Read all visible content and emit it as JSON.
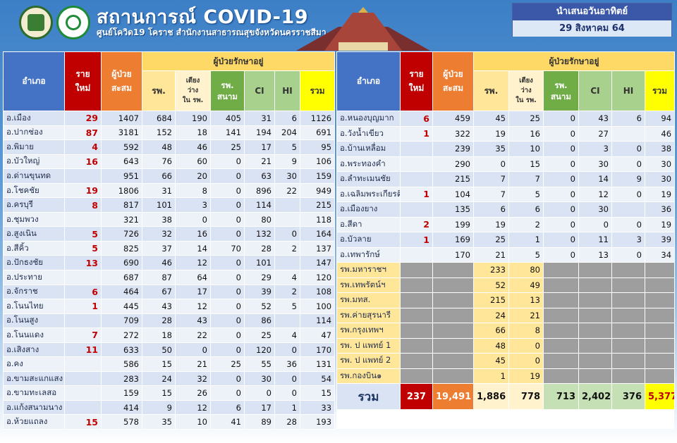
{
  "header": {
    "title": "สถานการณ์ COVID-19",
    "subtitle": "ศูนย์โควิด19 โคราช สำนักงานสาธารณสุขจังหวัดนครราชสีมา",
    "date_label": "นำเสนอวันอาทิตย์",
    "date_value": "29 สิงหาคม 64"
  },
  "columns": {
    "district": "อำเภอ",
    "new_line1": "ราย",
    "new_line2": "ใหม่",
    "cum_line1": "ผู้ป่วย",
    "cum_line2": "สะสม",
    "group": "ผู้ป่วยรักษาอยู่",
    "hosp": "รพ.",
    "bed_line1": "เตียง",
    "bed_line2": "ว่าง",
    "bed_line3": "ใน รพ.",
    "field_line1": "รพ.",
    "field_line2": "สนาม",
    "ci": "CI",
    "hi": "HI",
    "total": "รวม"
  },
  "left_rows": [
    {
      "name": "อ.เมือง",
      "new": "29",
      "cum": "1407",
      "hosp": "684",
      "bed": "190",
      "field": "405",
      "ci": "31",
      "hi": "6",
      "total": "1126"
    },
    {
      "name": "อ.ปากช่อง",
      "new": "87",
      "cum": "3181",
      "hosp": "152",
      "bed": "18",
      "field": "141",
      "ci": "194",
      "hi": "204",
      "total": "691"
    },
    {
      "name": "อ.พิมาย",
      "new": "4",
      "cum": "592",
      "hosp": "48",
      "bed": "46",
      "field": "25",
      "ci": "17",
      "hi": "5",
      "total": "95"
    },
    {
      "name": "อ.บัวใหญ่",
      "new": "16",
      "cum": "643",
      "hosp": "76",
      "bed": "60",
      "field": "0",
      "ci": "21",
      "hi": "9",
      "total": "106"
    },
    {
      "name": "อ.ด่านขุนทด",
      "new": "",
      "cum": "951",
      "hosp": "66",
      "bed": "20",
      "field": "0",
      "ci": "63",
      "hi": "30",
      "total": "159"
    },
    {
      "name": "อ.โชคชัย",
      "new": "19",
      "cum": "1806",
      "hosp": "31",
      "bed": "8",
      "field": "0",
      "ci": "896",
      "hi": "22",
      "total": "949"
    },
    {
      "name": "อ.ครบุรี",
      "new": "8",
      "cum": "817",
      "hosp": "101",
      "bed": "3",
      "field": "0",
      "ci": "114",
      "hi": "",
      "total": "215"
    },
    {
      "name": "อ.ชุมพวง",
      "new": "",
      "cum": "321",
      "hosp": "38",
      "bed": "0",
      "field": "0",
      "ci": "80",
      "hi": "",
      "total": "118"
    },
    {
      "name": "อ.สูงเนิน",
      "new": "5",
      "cum": "726",
      "hosp": "32",
      "bed": "16",
      "field": "0",
      "ci": "132",
      "hi": "0",
      "total": "164"
    },
    {
      "name": "อ.สีคิ้ว",
      "new": "5",
      "cum": "825",
      "hosp": "37",
      "bed": "14",
      "field": "70",
      "ci": "28",
      "hi": "2",
      "total": "137"
    },
    {
      "name": "อ.ปักธงชัย",
      "new": "13",
      "cum": "690",
      "hosp": "46",
      "bed": "12",
      "field": "0",
      "ci": "101",
      "hi": "",
      "total": "147"
    },
    {
      "name": "อ.ประทาย",
      "new": "",
      "cum": "687",
      "hosp": "87",
      "bed": "64",
      "field": "0",
      "ci": "29",
      "hi": "4",
      "total": "120"
    },
    {
      "name": "อ.จักราช",
      "new": "6",
      "cum": "464",
      "hosp": "67",
      "bed": "17",
      "field": "0",
      "ci": "39",
      "hi": "2",
      "total": "108"
    },
    {
      "name": "อ.โนนไทย",
      "new": "1",
      "cum": "445",
      "hosp": "43",
      "bed": "12",
      "field": "0",
      "ci": "52",
      "hi": "5",
      "total": "100"
    },
    {
      "name": "อ.โนนสูง",
      "new": "",
      "cum": "709",
      "hosp": "28",
      "bed": "43",
      "field": "0",
      "ci": "86",
      "hi": "",
      "total": "114"
    },
    {
      "name": "อ.โนนแดง",
      "new": "7",
      "cum": "272",
      "hosp": "18",
      "bed": "22",
      "field": "0",
      "ci": "25",
      "hi": "4",
      "total": "47"
    },
    {
      "name": "อ.เสิงสาง",
      "new": "11",
      "cum": "633",
      "hosp": "50",
      "bed": "0",
      "field": "0",
      "ci": "120",
      "hi": "0",
      "total": "170"
    },
    {
      "name": "อ.คง",
      "new": "",
      "cum": "586",
      "hosp": "15",
      "bed": "21",
      "field": "25",
      "ci": "55",
      "hi": "36",
      "total": "131"
    },
    {
      "name": "อ.ขามสะแกแสง",
      "new": "",
      "cum": "283",
      "hosp": "24",
      "bed": "32",
      "field": "0",
      "ci": "30",
      "hi": "0",
      "total": "54"
    },
    {
      "name": "อ.ขามทะเลสอ",
      "new": "",
      "cum": "159",
      "hosp": "15",
      "bed": "26",
      "field": "0",
      "ci": "0",
      "hi": "0",
      "total": "15"
    },
    {
      "name": "อ.แก้งสนามนาง",
      "new": "",
      "cum": "414",
      "hosp": "9",
      "bed": "12",
      "field": "6",
      "ci": "17",
      "hi": "1",
      "total": "33"
    },
    {
      "name": "อ.ห้วยแถลง",
      "new": "15",
      "cum": "578",
      "hosp": "35",
      "bed": "10",
      "field": "41",
      "ci": "89",
      "hi": "28",
      "total": "193"
    }
  ],
  "right_rows": [
    {
      "name": "อ.หนองบุญมาก",
      "new": "6",
      "cum": "459",
      "hosp": "45",
      "bed": "25",
      "field": "0",
      "ci": "43",
      "hi": "6",
      "total": "94"
    },
    {
      "name": "อ.วังน้ำเขียว",
      "new": "1",
      "cum": "322",
      "hosp": "19",
      "bed": "16",
      "field": "0",
      "ci": "27",
      "hi": "",
      "total": "46"
    },
    {
      "name": "อ.บ้านเหลื่อม",
      "new": "",
      "cum": "239",
      "hosp": "35",
      "bed": "10",
      "field": "0",
      "ci": "3",
      "hi": "0",
      "total": "38"
    },
    {
      "name": "อ.พระทองคำ",
      "new": "",
      "cum": "290",
      "hosp": "0",
      "bed": "15",
      "field": "0",
      "ci": "30",
      "hi": "0",
      "total": "30"
    },
    {
      "name": "อ.ลำทะเมนชัย",
      "new": "",
      "cum": "215",
      "hosp": "7",
      "bed": "7",
      "field": "0",
      "ci": "14",
      "hi": "9",
      "total": "30"
    },
    {
      "name": "อ.เฉลิมพระเกียรติ",
      "new": "1",
      "cum": "104",
      "hosp": "7",
      "bed": "5",
      "field": "0",
      "ci": "12",
      "hi": "0",
      "total": "19"
    },
    {
      "name": "อ.เมืองยาง",
      "new": "",
      "cum": "135",
      "hosp": "6",
      "bed": "6",
      "field": "0",
      "ci": "30",
      "hi": "",
      "total": "36"
    },
    {
      "name": "อ.สีดา",
      "new": "2",
      "cum": "199",
      "hosp": "19",
      "bed": "2",
      "field": "0",
      "ci": "0",
      "hi": "0",
      "total": "19"
    },
    {
      "name": "อ.บัวลาย",
      "new": "1",
      "cum": "169",
      "hosp": "25",
      "bed": "1",
      "field": "0",
      "ci": "11",
      "hi": "3",
      "total": "39"
    },
    {
      "name": "อ.เทพารักษ์",
      "new": "",
      "cum": "170",
      "hosp": "21",
      "bed": "5",
      "field": "0",
      "ci": "13",
      "hi": "0",
      "total": "34"
    }
  ],
  "hospital_rows": [
    {
      "name": "รพ.มหาราชฯ",
      "hosp": "233",
      "bed": "80"
    },
    {
      "name": "รพ.เทพรัตน์ฯ",
      "hosp": "52",
      "bed": "49"
    },
    {
      "name": "รพ.มทส.",
      "hosp": "215",
      "bed": "13"
    },
    {
      "name": "รพ.ค่ายสุรนารี",
      "hosp": "24",
      "bed": "21"
    },
    {
      "name": "รพ.กรุงเทพฯ",
      "hosp": "66",
      "bed": "8"
    },
    {
      "name": "รพ. ป แพทย์ 1",
      "hosp": "48",
      "bed": "0"
    },
    {
      "name": "รพ. ป แพทย์ 2",
      "hosp": "45",
      "bed": "0"
    },
    {
      "name": "รพ.กองบิน๑",
      "hosp": "1",
      "bed": "19"
    }
  ],
  "totals": {
    "label": "รวม",
    "new": "237",
    "cum": "19,491",
    "hosp": "1,886",
    "bed": "778",
    "field": "713",
    "ci": "2,402",
    "hi": "376",
    "total": "5,377"
  }
}
